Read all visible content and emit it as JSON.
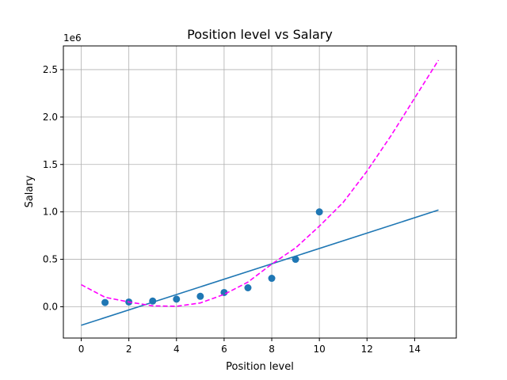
{
  "chart_data": {
    "type": "scatter",
    "title": "Position level vs Salary",
    "xlabel": "Position level",
    "ylabel": "Salary",
    "y_scale_label": "1e6",
    "xlim": [
      -0.75,
      15.75
    ],
    "ylim": [
      -330000,
      2750000
    ],
    "x_ticks": [
      0,
      2,
      4,
      6,
      8,
      10,
      12,
      14
    ],
    "y_ticks": [
      0,
      500000,
      1000000,
      1500000,
      2000000,
      2500000
    ],
    "y_tick_labels": [
      "0.0",
      "0.5",
      "1.0",
      "1.5",
      "2.0",
      "2.5"
    ],
    "grid": true,
    "series": [
      {
        "kind": "scatter",
        "color": "#1f77b4",
        "x": [
          1,
          2,
          3,
          4,
          5,
          6,
          7,
          8,
          9,
          10
        ],
        "y": [
          45000,
          50000,
          60000,
          80000,
          110000,
          150000,
          200000,
          300000,
          500000,
          1000000
        ]
      },
      {
        "kind": "line",
        "style": "solid",
        "color": "#1f77b4",
        "x": [
          0,
          15
        ],
        "y": [
          -195333,
          1020000
        ]
      },
      {
        "kind": "line",
        "style": "dashed",
        "color": "#ff00ff",
        "x": [
          0,
          1,
          2,
          3,
          4,
          5,
          6,
          7,
          8,
          9,
          10,
          11,
          12,
          13,
          14,
          15
        ],
        "y": [
          232167,
          100000,
          50000,
          10000,
          5000,
          40000,
          130000,
          260000,
          450000,
          620000,
          850000,
          1100000,
          1430000,
          1800000,
          2200000,
          2600000
        ]
      }
    ]
  }
}
